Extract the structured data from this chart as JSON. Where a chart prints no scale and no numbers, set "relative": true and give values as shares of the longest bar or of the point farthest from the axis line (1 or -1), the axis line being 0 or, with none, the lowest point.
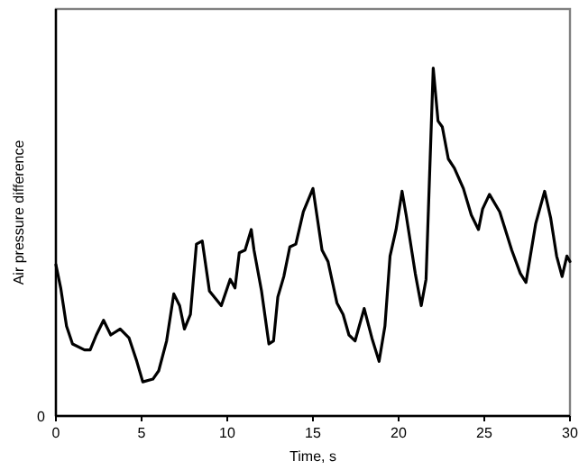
{
  "chart_data": {
    "type": "line",
    "relative": true,
    "xlabel": "Time, s",
    "ylabel": "Air pressure difference",
    "xlim": [
      0,
      30
    ],
    "xticks": [
      0,
      5,
      10,
      15,
      20,
      25,
      30
    ],
    "annotations": [
      "0"
    ],
    "grid": false,
    "line_style": "solid",
    "series": [
      {
        "color": "#000000",
        "x": [
          0,
          0.28,
          0.62,
          0.97,
          1.67,
          2.0,
          2.36,
          2.78,
          3.2,
          3.75,
          4.27,
          4.72,
          5.07,
          5.66,
          6.0,
          6.46,
          6.88,
          7.22,
          7.5,
          7.85,
          8.2,
          8.54,
          8.96,
          9.65,
          10.17,
          10.45,
          10.7,
          11.04,
          11.4,
          11.56,
          12.0,
          12.43,
          12.7,
          12.95,
          13.3,
          13.65,
          14.0,
          14.44,
          15,
          15.53,
          15.88,
          16.4,
          16.76,
          17.1,
          17.46,
          17.99,
          18.44,
          18.86,
          19.2,
          19.5,
          19.85,
          20.2,
          20.44,
          20.97,
          21.32,
          21.6,
          22.02,
          22.3,
          22.55,
          22.9,
          23.25,
          23.78,
          24.24,
          24.66,
          24.9,
          25.3,
          25.9,
          26.6,
          27.1,
          27.43,
          28.0,
          28.52,
          28.87,
          29.22,
          29.54,
          29.82,
          30
        ],
        "values": [
          0.435,
          0.368,
          0.258,
          0.207,
          0.19,
          0.19,
          0.233,
          0.275,
          0.233,
          0.25,
          0.224,
          0.157,
          0.098,
          0.106,
          0.13,
          0.216,
          0.351,
          0.317,
          0.25,
          0.292,
          0.494,
          0.503,
          0.359,
          0.317,
          0.393,
          0.368,
          0.469,
          0.477,
          0.536,
          0.477,
          0.359,
          0.207,
          0.216,
          0.342,
          0.401,
          0.486,
          0.494,
          0.587,
          0.654,
          0.477,
          0.444,
          0.325,
          0.292,
          0.233,
          0.216,
          0.309,
          0.224,
          0.157,
          0.258,
          0.46,
          0.536,
          0.646,
          0.578,
          0.41,
          0.317,
          0.393,
          1.0,
          0.848,
          0.831,
          0.739,
          0.713,
          0.654,
          0.578,
          0.536,
          0.595,
          0.637,
          0.587,
          0.477,
          0.41,
          0.384,
          0.553,
          0.646,
          0.57,
          0.46,
          0.401,
          0.46,
          0.444
        ]
      }
    ]
  }
}
